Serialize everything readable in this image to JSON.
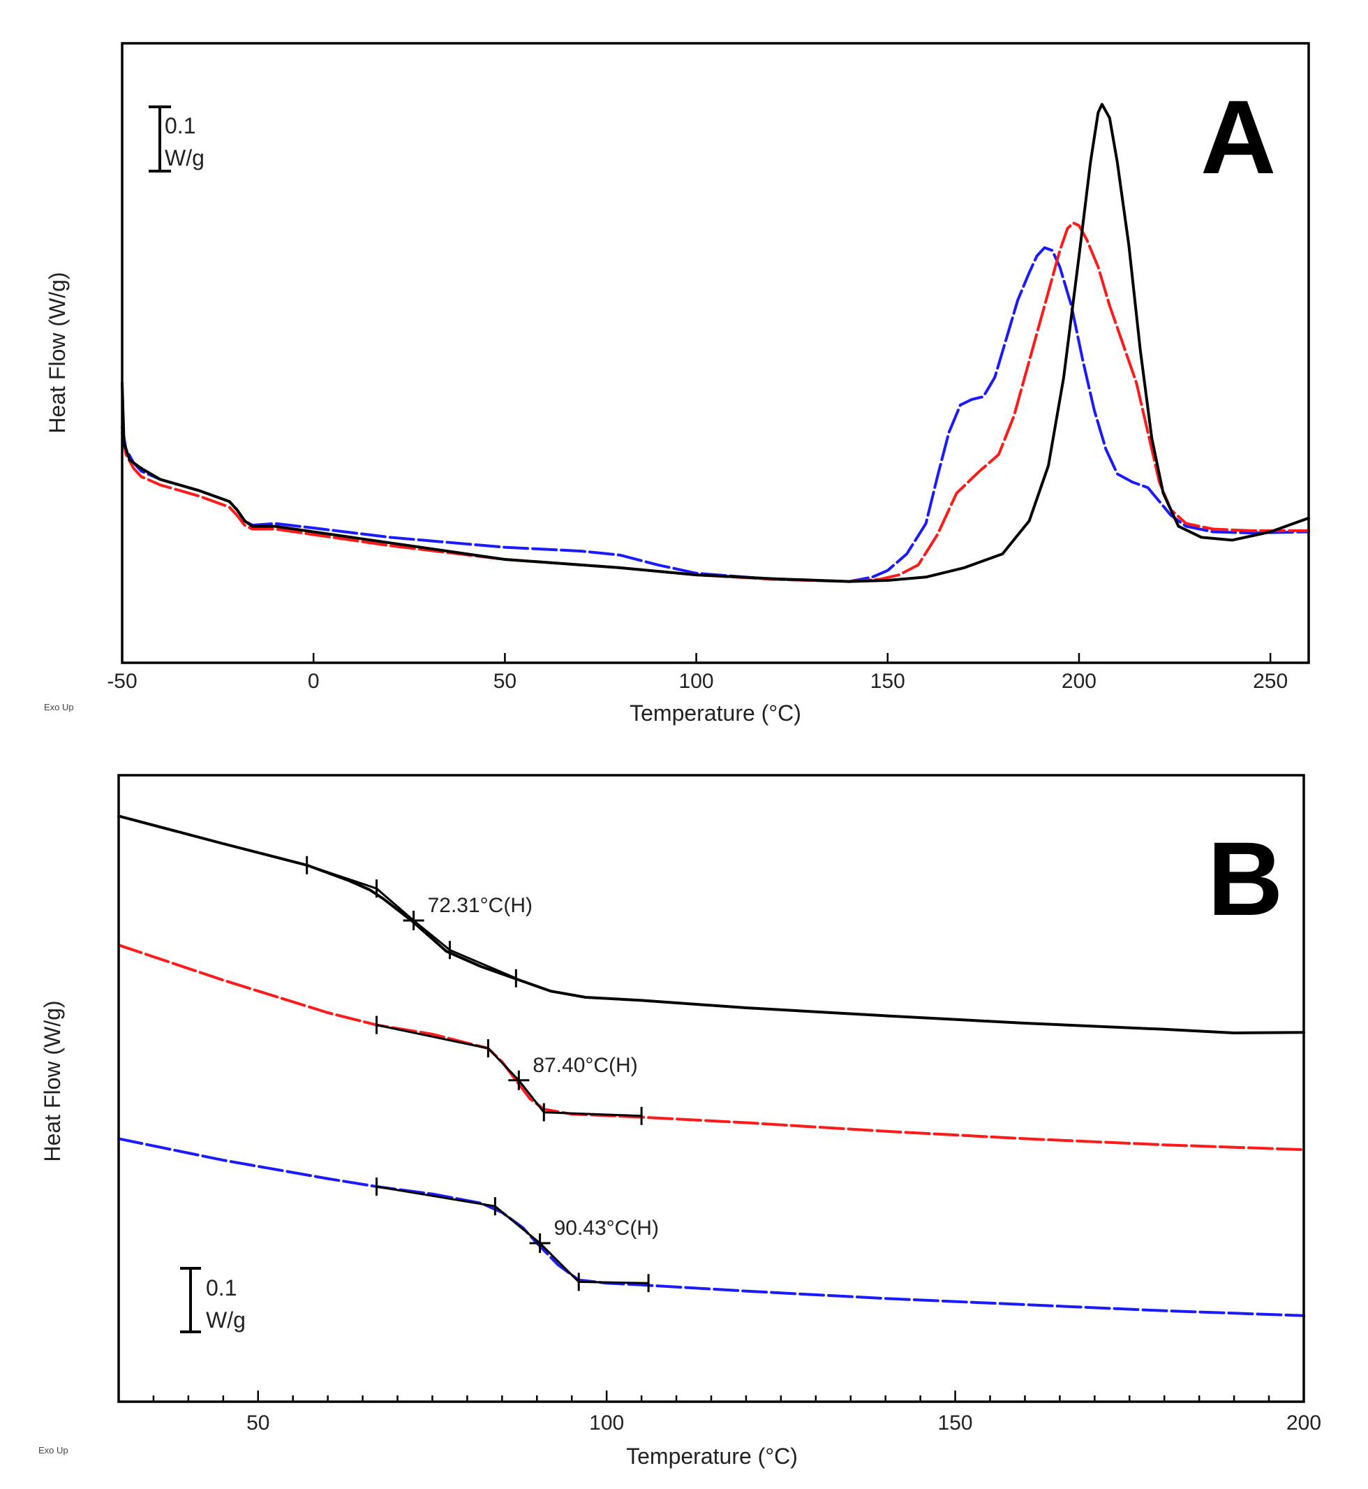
{
  "colors": {
    "black": "#000000",
    "red": "#ff1a1a",
    "blue": "#1a1aff"
  },
  "chart_data": [
    {
      "id": "A",
      "type": "line",
      "panel_label": "A",
      "xlabel": "Temperature (°C)",
      "ylabel": "Heat Flow (W/g)",
      "xlim": [
        -50,
        260
      ],
      "ylim": [
        0,
        1
      ],
      "xticks": [
        -50,
        0,
        50,
        100,
        150,
        200,
        250
      ],
      "xtick_labels": [
        "-50",
        "0",
        "50",
        "100",
        "150",
        "200",
        "250"
      ],
      "corner_note": "Exo Up",
      "scale_bar": {
        "label_line1": "0.1",
        "label_line2": "W/g"
      },
      "series": [
        {
          "name": "black",
          "color": "black",
          "dash": "solid",
          "points": [
            [
              -50,
              0.42
            ],
            [
              -49.5,
              0.31
            ],
            [
              -48,
              0.28
            ],
            [
              -45,
              0.265
            ],
            [
              -40,
              0.245
            ],
            [
              -30,
              0.225
            ],
            [
              -22,
              0.205
            ],
            [
              -20,
              0.19
            ],
            [
              -18,
              0.17
            ],
            [
              -16,
              0.16
            ],
            [
              -10,
              0.16
            ],
            [
              0,
              0.15
            ],
            [
              20,
              0.13
            ],
            [
              50,
              0.1
            ],
            [
              80,
              0.085
            ],
            [
              100,
              0.072
            ],
            [
              120,
              0.065
            ],
            [
              140,
              0.06
            ],
            [
              150,
              0.062
            ],
            [
              160,
              0.068
            ],
            [
              170,
              0.085
            ],
            [
              180,
              0.11
            ],
            [
              187,
              0.17
            ],
            [
              192,
              0.27
            ],
            [
              196,
              0.43
            ],
            [
              200,
              0.65
            ],
            [
              203,
              0.82
            ],
            [
              205,
              0.91
            ],
            [
              206,
              0.925
            ],
            [
              208,
              0.9
            ],
            [
              210,
              0.82
            ],
            [
              213,
              0.67
            ],
            [
              216,
              0.48
            ],
            [
              219,
              0.32
            ],
            [
              222,
              0.22
            ],
            [
              226,
              0.16
            ],
            [
              232,
              0.14
            ],
            [
              240,
              0.135
            ],
            [
              250,
              0.15
            ],
            [
              260,
              0.175
            ]
          ]
        },
        {
          "name": "red",
          "color": "red",
          "dash": "dashed",
          "points": [
            [
              -50,
              0.33
            ],
            [
              -49,
              0.29
            ],
            [
              -47,
              0.265
            ],
            [
              -45,
              0.25
            ],
            [
              -40,
              0.235
            ],
            [
              -30,
              0.215
            ],
            [
              -22,
              0.195
            ],
            [
              -20,
              0.18
            ],
            [
              -18,
              0.162
            ],
            [
              -16,
              0.155
            ],
            [
              -10,
              0.155
            ],
            [
              0,
              0.145
            ],
            [
              20,
              0.125
            ],
            [
              50,
              0.1
            ],
            [
              80,
              0.085
            ],
            [
              100,
              0.072
            ],
            [
              120,
              0.064
            ],
            [
              140,
              0.06
            ],
            [
              148,
              0.064
            ],
            [
              153,
              0.072
            ],
            [
              158,
              0.09
            ],
            [
              163,
              0.145
            ],
            [
              168,
              0.22
            ],
            [
              174,
              0.26
            ],
            [
              179,
              0.29
            ],
            [
              183,
              0.36
            ],
            [
              187,
              0.46
            ],
            [
              191,
              0.56
            ],
            [
              195,
              0.66
            ],
            [
              197,
              0.7
            ],
            [
              198.5,
              0.71
            ],
            [
              200,
              0.705
            ],
            [
              202,
              0.68
            ],
            [
              205,
              0.63
            ],
            [
              208,
              0.56
            ],
            [
              212,
              0.48
            ],
            [
              215,
              0.42
            ],
            [
              218,
              0.33
            ],
            [
              221,
              0.24
            ],
            [
              224,
              0.19
            ],
            [
              228,
              0.165
            ],
            [
              235,
              0.155
            ],
            [
              245,
              0.152
            ],
            [
              260,
              0.152
            ]
          ]
        },
        {
          "name": "blue",
          "color": "blue",
          "dash": "dashed",
          "points": [
            [
              -50,
              0.34
            ],
            [
              -49,
              0.3
            ],
            [
              -47,
              0.275
            ],
            [
              -45,
              0.26
            ],
            [
              -40,
              0.245
            ],
            [
              -30,
              0.225
            ],
            [
              -22,
              0.205
            ],
            [
              -20,
              0.19
            ],
            [
              -18,
              0.17
            ],
            [
              -16,
              0.162
            ],
            [
              -10,
              0.165
            ],
            [
              0,
              0.157
            ],
            [
              20,
              0.14
            ],
            [
              50,
              0.122
            ],
            [
              70,
              0.115
            ],
            [
              80,
              0.108
            ],
            [
              90,
              0.09
            ],
            [
              100,
              0.075
            ],
            [
              120,
              0.064
            ],
            [
              140,
              0.06
            ],
            [
              146,
              0.068
            ],
            [
              150,
              0.08
            ],
            [
              155,
              0.11
            ],
            [
              160,
              0.165
            ],
            [
              163,
              0.25
            ],
            [
              166,
              0.33
            ],
            [
              169,
              0.38
            ],
            [
              172,
              0.39
            ],
            [
              175,
              0.395
            ],
            [
              178,
              0.43
            ],
            [
              181,
              0.5
            ],
            [
              184,
              0.57
            ],
            [
              187,
              0.62
            ],
            [
              189,
              0.65
            ],
            [
              191,
              0.665
            ],
            [
              193,
              0.66
            ],
            [
              195,
              0.63
            ],
            [
              198,
              0.56
            ],
            [
              201,
              0.46
            ],
            [
              204,
              0.37
            ],
            [
              207,
              0.3
            ],
            [
              210,
              0.255
            ],
            [
              214,
              0.24
            ],
            [
              218,
              0.23
            ],
            [
              221,
              0.205
            ],
            [
              224,
              0.18
            ],
            [
              228,
              0.16
            ],
            [
              235,
              0.15
            ],
            [
              245,
              0.148
            ],
            [
              260,
              0.15
            ]
          ]
        }
      ]
    },
    {
      "id": "B",
      "type": "line",
      "panel_label": "B",
      "xlabel": "Temperature (°C)",
      "ylabel": "Heat Flow (W/g)",
      "xlim": [
        30,
        200
      ],
      "ylim": [
        0,
        1
      ],
      "xticks": [
        50,
        100,
        150,
        200
      ],
      "xtick_labels": [
        "50",
        "100",
        "150",
        "200"
      ],
      "minor_xtick_step": 5,
      "corner_note": "Exo Up",
      "scale_bar": {
        "label_line1": "0.1",
        "label_line2": "W/g"
      },
      "series": [
        {
          "name": "black",
          "color": "black",
          "dash": "solid",
          "points": [
            [
              30,
              0.945
            ],
            [
              45,
              0.9
            ],
            [
              57,
              0.865
            ],
            [
              63,
              0.84
            ],
            [
              66,
              0.825
            ],
            [
              68,
              0.81
            ],
            [
              72,
              0.775
            ],
            [
              75,
              0.745
            ],
            [
              77,
              0.725
            ],
            [
              82,
              0.7
            ],
            [
              87,
              0.68
            ],
            [
              92,
              0.66
            ],
            [
              97,
              0.65
            ],
            [
              105,
              0.645
            ],
            [
              120,
              0.633
            ],
            [
              140,
              0.62
            ],
            [
              160,
              0.608
            ],
            [
              180,
              0.598
            ],
            [
              190,
              0.592
            ],
            [
              200,
              0.593
            ]
          ]
        },
        {
          "name": "red",
          "color": "red",
          "dash": "dashed",
          "points": [
            [
              30,
              0.735
            ],
            [
              45,
              0.678
            ],
            [
              60,
              0.625
            ],
            [
              67,
              0.605
            ],
            [
              75,
              0.59
            ],
            [
              83,
              0.567
            ],
            [
              85,
              0.545
            ],
            [
              87,
              0.515
            ],
            [
              89,
              0.485
            ],
            [
              91,
              0.468
            ],
            [
              95,
              0.46
            ],
            [
              105,
              0.455
            ],
            [
              120,
              0.446
            ],
            [
              140,
              0.432
            ],
            [
              160,
              0.42
            ],
            [
              180,
              0.41
            ],
            [
              200,
              0.402
            ]
          ]
        },
        {
          "name": "blue",
          "color": "blue",
          "dash": "dashed",
          "points": [
            [
              30,
              0.42
            ],
            [
              45,
              0.385
            ],
            [
              60,
              0.355
            ],
            [
              67,
              0.342
            ],
            [
              75,
              0.33
            ],
            [
              82,
              0.315
            ],
            [
              85,
              0.3
            ],
            [
              88,
              0.275
            ],
            [
              90,
              0.25
            ],
            [
              93,
              0.215
            ],
            [
              96,
              0.19
            ],
            [
              100,
              0.185
            ],
            [
              105,
              0.182
            ],
            [
              120,
              0.172
            ],
            [
              140,
              0.16
            ],
            [
              160,
              0.15
            ],
            [
              180,
              0.14
            ],
            [
              200,
              0.132
            ]
          ]
        }
      ],
      "fit_lines": [
        {
          "points": [
            [
              57,
              0.865
            ],
            [
              67,
              0.827
            ],
            [
              72.31,
              0.775
            ],
            [
              77.5,
              0.727
            ],
            [
              87,
              0.681
            ]
          ]
        },
        {
          "points": [
            [
              67,
              0.605
            ],
            [
              83,
              0.567
            ],
            [
              87.4,
              0.515
            ],
            [
              91,
              0.463
            ],
            [
              105,
              0.457
            ]
          ]
        },
        {
          "points": [
            [
              67,
              0.342
            ],
            [
              84,
              0.31
            ],
            [
              90.43,
              0.25
            ],
            [
              96,
              0.187
            ],
            [
              106,
              0.185
            ]
          ]
        }
      ],
      "end_ticks": [
        [
          57,
          0.865
        ],
        [
          67,
          0.827
        ],
        [
          77.5,
          0.727
        ],
        [
          87,
          0.681
        ],
        [
          67,
          0.605
        ],
        [
          83,
          0.567
        ],
        [
          91,
          0.463
        ],
        [
          105,
          0.457
        ],
        [
          67,
          0.342
        ],
        [
          84,
          0.31
        ],
        [
          96,
          0.187
        ],
        [
          106,
          0.185
        ]
      ],
      "cross_marks": [
        [
          72.31,
          0.775
        ],
        [
          87.4,
          0.515
        ],
        [
          90.43,
          0.25
        ]
      ],
      "annotations": [
        {
          "text": "72.31°C(H)",
          "x": 72.31,
          "y": 0.775
        },
        {
          "text": "87.40°C(H)",
          "x": 87.4,
          "y": 0.515
        },
        {
          "text": "90.43°C(H)",
          "x": 90.43,
          "y": 0.25
        }
      ]
    }
  ]
}
